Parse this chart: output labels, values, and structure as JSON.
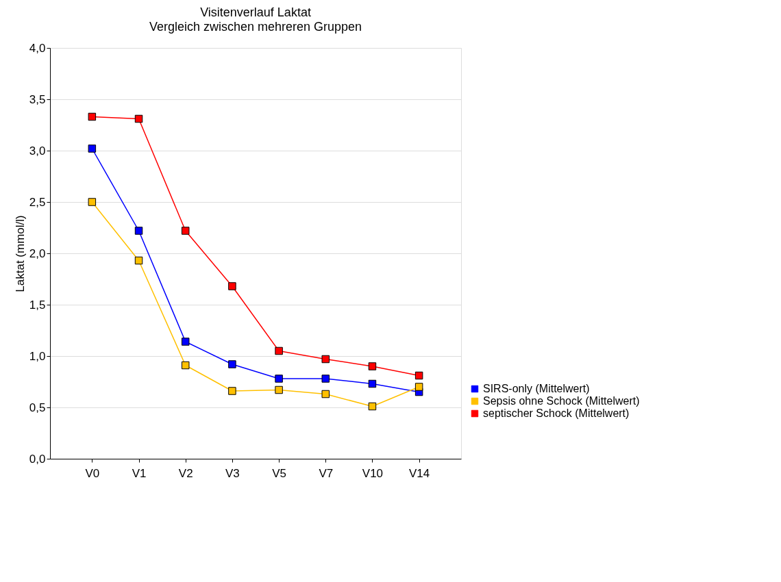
{
  "chart_data": {
    "type": "line",
    "title": "Visitenverlauf Laktat",
    "subtitle": "Vergleich zwischen mehreren Gruppen",
    "ylabel": "Laktat (mmol/l)",
    "categories": [
      "V0",
      "V1",
      "V2",
      "V3",
      "V5",
      "V7",
      "V10",
      "V14"
    ],
    "series": [
      {
        "name": "SIRS-only (Mittelwert)",
        "color": "#0000ff",
        "values": [
          3.02,
          2.22,
          1.14,
          0.92,
          0.78,
          0.78,
          0.73,
          0.65
        ]
      },
      {
        "name": "Sepsis ohne Schock (Mittelwert)",
        "color": "#ffc000",
        "values": [
          2.5,
          1.93,
          0.91,
          0.66,
          0.67,
          0.63,
          0.51,
          0.7
        ]
      },
      {
        "name": "septischer Schock (Mittelwert)",
        "color": "#ff0000",
        "values": [
          3.33,
          3.31,
          2.22,
          1.68,
          1.05,
          0.97,
          0.9,
          0.81
        ]
      }
    ],
    "ylim": [
      0,
      4
    ],
    "yticks": [
      {
        "value": 0,
        "label": "0,0"
      },
      {
        "value": 0.5,
        "label": "0,5"
      },
      {
        "value": 1,
        "label": "1,0"
      },
      {
        "value": 1.5,
        "label": "1,5"
      },
      {
        "value": 2,
        "label": "2,0"
      },
      {
        "value": 2.5,
        "label": "2,5"
      },
      {
        "value": 3,
        "label": "3,0"
      },
      {
        "value": 3.5,
        "label": "3,5"
      },
      {
        "value": 4,
        "label": "4,0"
      }
    ],
    "grid": "y",
    "legend": "right",
    "marker": "square",
    "line_style": "solid"
  }
}
